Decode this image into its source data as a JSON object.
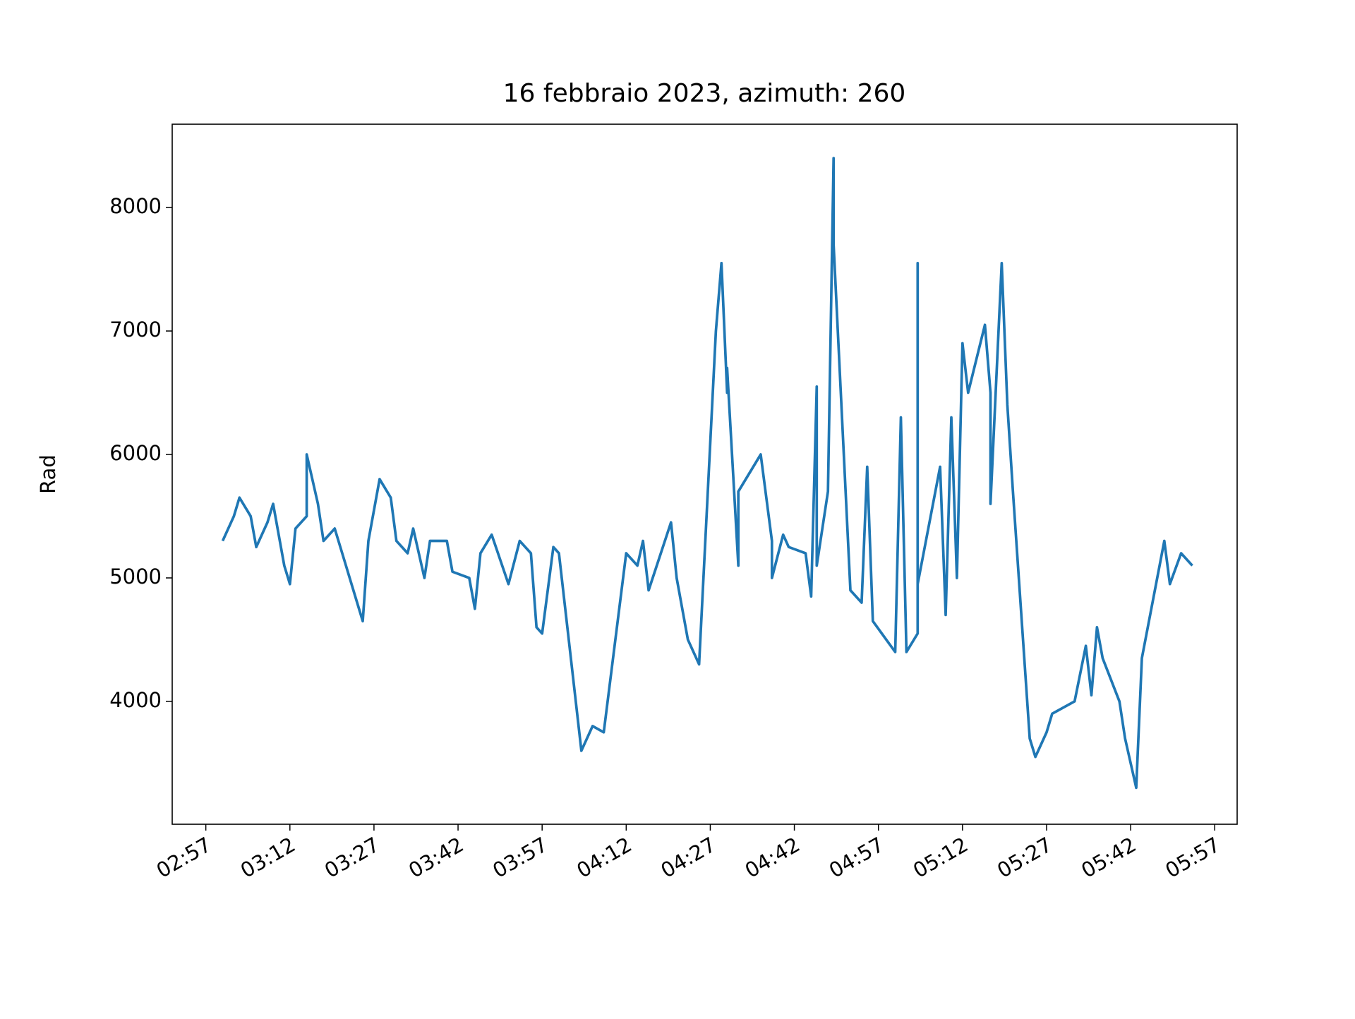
{
  "chart_data": {
    "type": "line",
    "title": "16 febbraio 2023, azimuth: 260",
    "y_label": "Rad",
    "x": [
      "03:00",
      "03:02",
      "03:03",
      "03:05",
      "03:06",
      "03:08",
      "03:09",
      "03:11",
      "03:12",
      "03:13",
      "03:15",
      "03:15",
      "03:17",
      "03:18",
      "03:20",
      "03:22",
      "03:23",
      "03:25",
      "03:26",
      "03:28",
      "03:30",
      "03:31",
      "03:33",
      "03:34",
      "03:36",
      "03:37",
      "03:40",
      "03:41",
      "03:44",
      "03:45",
      "03:46",
      "03:48",
      "03:51",
      "03:53",
      "03:55",
      "03:56",
      "03:57",
      "03:59",
      "04:00",
      "04:04",
      "04:06",
      "04:08",
      "04:12",
      "04:14",
      "04:15",
      "04:16",
      "04:20",
      "04:21",
      "04:23",
      "04:25",
      "04:28",
      "04:29",
      "04:30",
      "04:30",
      "04:32",
      "04:32",
      "04:36",
      "04:38",
      "04:38",
      "04:40",
      "04:41",
      "04:44",
      "04:45",
      "04:46",
      "04:46",
      "04:48",
      "04:49",
      "04:49",
      "04:52",
      "04:54",
      "04:55",
      "04:56",
      "05:00",
      "05:01",
      "05:02",
      "05:04",
      "05:04",
      "05:04",
      "05:08",
      "05:09",
      "05:10",
      "05:11",
      "05:12",
      "05:13",
      "05:16",
      "05:17",
      "05:17",
      "05:19",
      "05:20",
      "05:21",
      "05:24",
      "05:25",
      "05:27",
      "05:28",
      "05:32",
      "05:34",
      "05:35",
      "05:36",
      "05:37",
      "05:40",
      "05:41",
      "05:43",
      "05:44",
      "05:48",
      "05:49",
      "05:51",
      "05:53"
    ],
    "series": [
      {
        "color": "#1f77b4",
        "values": [
          5300,
          5500,
          5650,
          5500,
          5250,
          5450,
          5600,
          5100,
          4950,
          5400,
          5500,
          6000,
          5600,
          5300,
          5400,
          5100,
          4950,
          4650,
          5300,
          5800,
          5650,
          5300,
          5200,
          5400,
          5000,
          5300,
          5300,
          5050,
          5000,
          4750,
          5200,
          5350,
          4950,
          5300,
          5200,
          4600,
          4550,
          5250,
          5200,
          3600,
          3800,
          3750,
          5200,
          5100,
          5300,
          4900,
          5450,
          5000,
          4500,
          4300,
          7000,
          7550,
          6500,
          6700,
          5100,
          5700,
          6000,
          5300,
          5000,
          5350,
          5250,
          5200,
          4850,
          6550,
          5100,
          5700,
          8400,
          7700,
          4900,
          4800,
          5900,
          4650,
          4400,
          6300,
          4400,
          4550,
          7550,
          4950,
          5900,
          4700,
          6300,
          5000,
          6900,
          6500,
          7050,
          6500,
          5600,
          7550,
          6400,
          5700,
          3700,
          3550,
          3750,
          3900,
          4000,
          4450,
          4050,
          4600,
          4350,
          4000,
          3700,
          3300,
          4350,
          5300,
          4950,
          5200,
          5100
        ]
      }
    ],
    "xlim": [
      "02:51",
      "06:01"
    ],
    "xticks": [
      "02:57",
      "03:12",
      "03:27",
      "03:42",
      "03:57",
      "04:12",
      "04:27",
      "04:42",
      "04:57",
      "05:12",
      "05:27",
      "05:42",
      "05:57"
    ],
    "ylim": [
      3005,
      8675
    ],
    "yticks": [
      4000,
      5000,
      6000,
      7000,
      8000
    ]
  }
}
